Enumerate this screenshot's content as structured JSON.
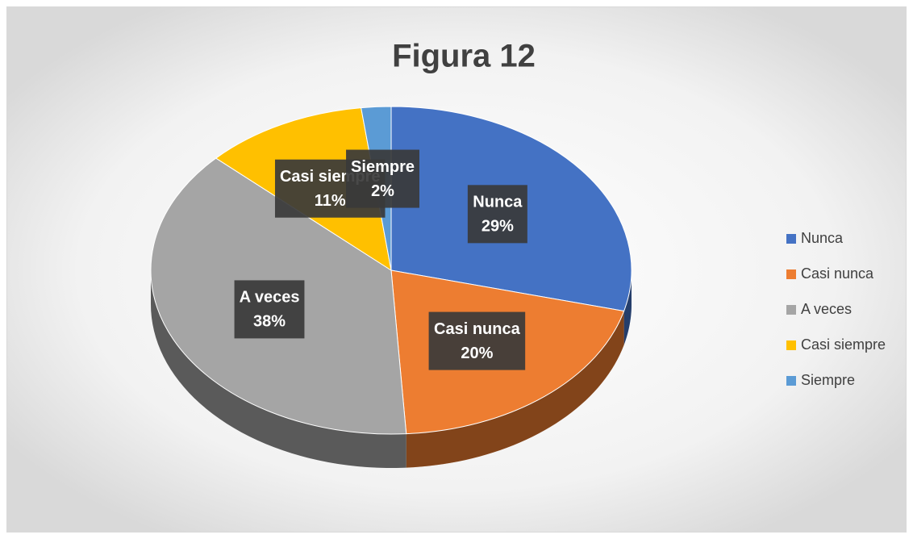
{
  "chart_data": {
    "type": "pie",
    "title": "Figura 12",
    "categories": [
      "Nunca",
      "Casi nunca",
      "A veces",
      "Casi siempre",
      "Siempre"
    ],
    "values": [
      29,
      20,
      38,
      11,
      2
    ],
    "value_labels": [
      "29%",
      "20%",
      "38%",
      "11%",
      "2%"
    ],
    "colors": [
      "#4472c4",
      "#ed7d31",
      "#a5a5a5",
      "#ffc000",
      "#5b9bd5"
    ],
    "legend": "right"
  }
}
